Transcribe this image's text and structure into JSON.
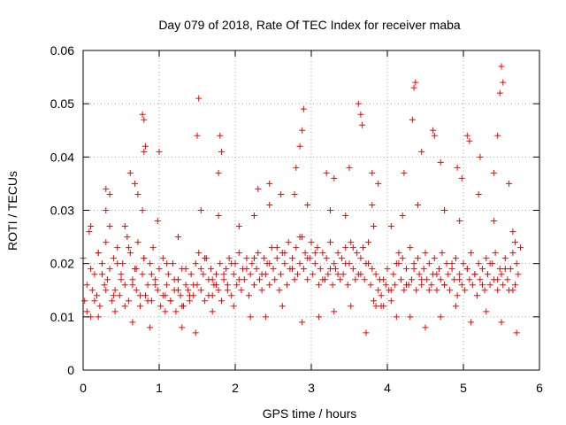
{
  "chart_data": {
    "type": "scatter",
    "title": "Day 079 of 2018, Rate Of TEC Index for receiver maba",
    "xlabel": "GPS time / hours",
    "ylabel": "ROTI / TECUs",
    "xlim": [
      0,
      6
    ],
    "ylim": [
      0,
      0.06
    ],
    "xticks": [
      0,
      1,
      2,
      3,
      4,
      5,
      6
    ],
    "xtick_labels": [
      "0",
      "1",
      "2",
      "3",
      "4",
      "5",
      "6"
    ],
    "yticks": [
      0,
      0.01,
      0.02,
      0.03,
      0.04,
      0.05,
      0.06
    ],
    "ytick_labels": [
      "0",
      "0.01",
      "0.02",
      "0.03",
      "0.04",
      "0.05",
      "0.06"
    ],
    "grid": true,
    "marker": "+",
    "marker_color": "#ff0000",
    "series": [
      {
        "name": "ROTI",
        "x": [
          0.0,
          0.02,
          0.05,
          0.08,
          0.1,
          0.12,
          0.15,
          0.18,
          0.2,
          0.22,
          0.25,
          0.28,
          0.3,
          0.32,
          0.35,
          0.38,
          0.4,
          0.42,
          0.45,
          0.48,
          0.5,
          0.52,
          0.55,
          0.58,
          0.6,
          0.62,
          0.65,
          0.68,
          0.7,
          0.72,
          0.75,
          0.78,
          0.8,
          0.82,
          0.85,
          0.88,
          0.9,
          0.92,
          0.95,
          0.98,
          1.0,
          1.02,
          1.05,
          1.08,
          1.1,
          1.12,
          1.15,
          1.18,
          1.2,
          1.22,
          1.25,
          1.28,
          1.3,
          1.32,
          1.35,
          1.38,
          1.4,
          1.42,
          1.45,
          1.48,
          1.5,
          1.52,
          1.55,
          1.58,
          1.6,
          1.62,
          1.65,
          1.68,
          1.7,
          1.72,
          1.75,
          1.78,
          1.8,
          1.82,
          1.85,
          1.88,
          1.9,
          1.92,
          1.95,
          1.98,
          2.0,
          2.02,
          2.05,
          2.08,
          2.1,
          2.12,
          2.15,
          2.18,
          2.2,
          2.22,
          2.25,
          2.28,
          2.3,
          2.32,
          2.35,
          2.38,
          2.4,
          2.42,
          2.45,
          2.48,
          2.5,
          2.52,
          2.55,
          2.58,
          2.6,
          2.62,
          2.65,
          2.68,
          2.7,
          2.72,
          2.75,
          2.78,
          2.8,
          2.82,
          2.85,
          2.88,
          2.9,
          2.92,
          2.95,
          2.98,
          3.0,
          3.02,
          3.05,
          3.08,
          3.1,
          3.12,
          3.15,
          3.18,
          3.2,
          3.22,
          3.25,
          3.28,
          3.3,
          3.32,
          3.35,
          3.38,
          3.4,
          3.42,
          3.45,
          3.48,
          3.5,
          3.52,
          3.55,
          3.58,
          3.6,
          3.62,
          3.65,
          3.68,
          3.7,
          3.72,
          3.75,
          3.78,
          3.8,
          3.82,
          3.85,
          3.88,
          3.9,
          3.92,
          3.95,
          3.98,
          4.0,
          4.02,
          4.05,
          4.08,
          4.1,
          4.12,
          4.15,
          4.18,
          4.2,
          4.22,
          4.25,
          4.28,
          4.3,
          4.32,
          4.35,
          4.38,
          4.4,
          4.42,
          4.45,
          4.48,
          4.5,
          4.52,
          4.55,
          4.58,
          4.6,
          4.62,
          4.65,
          4.68,
          4.7,
          4.72,
          4.75,
          4.78,
          4.8,
          4.82,
          4.85,
          4.88,
          4.9,
          4.92,
          4.95,
          4.98,
          5.0,
          5.02,
          5.05,
          5.08,
          5.1,
          5.12,
          5.15,
          5.18,
          5.2,
          5.22,
          5.25,
          5.28,
          5.3,
          5.32,
          5.35,
          5.38,
          5.4,
          5.42,
          5.45,
          5.48,
          5.5,
          5.52,
          5.55,
          5.58,
          5.6,
          5.62,
          5.65,
          5.68,
          5.7,
          5.72,
          5.75,
          0.05,
          0.1,
          0.15,
          0.2,
          0.25,
          0.3,
          0.35,
          0.4,
          0.45,
          0.5,
          0.55,
          0.6,
          0.65,
          0.7,
          0.75,
          0.8,
          0.85,
          0.9,
          0.95,
          1.05,
          1.1,
          1.15,
          1.2,
          1.25,
          1.3,
          1.35,
          1.4,
          1.45,
          1.55,
          1.6,
          1.65,
          1.7,
          1.75,
          1.85,
          1.9,
          1.95,
          2.05,
          2.15,
          2.25,
          2.35,
          2.45,
          2.55,
          2.65,
          2.75,
          2.85,
          2.95,
          3.05,
          3.15,
          3.25,
          3.35,
          3.45,
          3.55,
          3.65,
          3.75,
          3.85,
          3.95,
          4.05,
          4.15,
          4.25,
          4.35,
          4.45,
          4.55,
          4.65,
          4.75,
          4.85,
          4.95,
          5.05,
          5.15,
          5.25,
          5.35,
          5.45,
          5.55,
          5.65,
          0.78,
          0.8,
          0.82,
          0.8,
          1.52,
          1.5,
          1.8,
          1.82,
          2.85,
          2.9,
          2.88,
          3.62,
          3.65,
          3.67,
          4.35,
          4.37,
          4.33,
          4.6,
          4.62,
          5.05,
          5.08,
          5.5,
          5.52,
          5.48,
          5.45,
          0.3,
          0.35,
          0.62,
          0.68,
          0.72,
          1.0,
          1.78,
          2.3,
          2.45,
          2.6,
          2.8,
          3.2,
          3.3,
          3.5,
          3.8,
          3.88,
          4.22,
          4.45,
          4.7,
          4.92,
          4.98,
          5.22,
          5.4,
          5.6,
          0.1,
          0.3,
          0.55,
          0.78,
          0.98,
          1.25,
          1.55,
          1.78,
          2.05,
          2.25,
          2.45,
          2.78,
          2.95,
          3.25,
          3.45,
          3.8,
          3.82,
          4.05,
          4.2,
          4.4,
          4.75,
          4.95,
          5.2,
          5.4,
          5.65,
          5.68,
          0.2,
          0.42,
          0.65,
          0.88,
          1.08,
          1.3,
          1.48,
          1.7,
          1.98,
          2.2,
          2.4,
          2.62,
          2.88,
          3.1,
          3.3,
          3.52,
          3.72,
          3.92,
          4.12,
          4.3,
          4.5,
          4.7,
          4.9,
          5.1,
          5.3,
          5.5,
          5.7
        ],
        "y": [
          0.021,
          0.013,
          0.011,
          0.026,
          0.01,
          0.015,
          0.018,
          0.014,
          0.022,
          0.012,
          0.02,
          0.016,
          0.024,
          0.017,
          0.019,
          0.013,
          0.021,
          0.015,
          0.023,
          0.014,
          0.018,
          0.02,
          0.016,
          0.025,
          0.013,
          0.022,
          0.017,
          0.019,
          0.015,
          0.024,
          0.012,
          0.018,
          0.021,
          0.014,
          0.016,
          0.02,
          0.013,
          0.023,
          0.017,
          0.015,
          0.019,
          0.012,
          0.021,
          0.014,
          0.016,
          0.018,
          0.013,
          0.02,
          0.015,
          0.011,
          0.017,
          0.014,
          0.019,
          0.012,
          0.016,
          0.015,
          0.013,
          0.018,
          0.014,
          0.02,
          0.016,
          0.022,
          0.015,
          0.018,
          0.013,
          0.021,
          0.017,
          0.019,
          0.014,
          0.016,
          0.018,
          0.015,
          0.02,
          0.013,
          0.017,
          0.019,
          0.016,
          0.021,
          0.014,
          0.018,
          0.02,
          0.016,
          0.022,
          0.015,
          0.019,
          0.017,
          0.021,
          0.014,
          0.018,
          0.02,
          0.016,
          0.019,
          0.022,
          0.017,
          0.015,
          0.021,
          0.018,
          0.02,
          0.016,
          0.023,
          0.019,
          0.017,
          0.021,
          0.015,
          0.018,
          0.022,
          0.02,
          0.016,
          0.024,
          0.019,
          0.021,
          0.017,
          0.023,
          0.018,
          0.02,
          0.025,
          0.019,
          0.022,
          0.017,
          0.021,
          0.024,
          0.018,
          0.02,
          0.023,
          0.016,
          0.019,
          0.022,
          0.017,
          0.021,
          0.018,
          0.024,
          0.016,
          0.02,
          0.019,
          0.022,
          0.017,
          0.021,
          0.018,
          0.023,
          0.016,
          0.02,
          0.024,
          0.019,
          0.017,
          0.022,
          0.018,
          0.021,
          0.023,
          0.017,
          0.02,
          0.024,
          0.016,
          0.019,
          0.013,
          0.018,
          0.015,
          0.017,
          0.014,
          0.012,
          0.016,
          0.019,
          0.015,
          0.013,
          0.018,
          0.016,
          0.02,
          0.022,
          0.017,
          0.021,
          0.015,
          0.019,
          0.016,
          0.023,
          0.017,
          0.02,
          0.015,
          0.021,
          0.018,
          0.016,
          0.019,
          0.022,
          0.017,
          0.02,
          0.016,
          0.018,
          0.021,
          0.015,
          0.019,
          0.017,
          0.022,
          0.016,
          0.02,
          0.018,
          0.015,
          0.019,
          0.017,
          0.021,
          0.014,
          0.018,
          0.016,
          0.02,
          0.015,
          0.019,
          0.017,
          0.022,
          0.016,
          0.018,
          0.014,
          0.02,
          0.017,
          0.019,
          0.015,
          0.021,
          0.018,
          0.016,
          0.02,
          0.017,
          0.022,
          0.015,
          0.019,
          0.018,
          0.016,
          0.021,
          0.017,
          0.015,
          0.019,
          0.022,
          0.016,
          0.02,
          0.018,
          0.023,
          0.016,
          0.019,
          0.013,
          0.022,
          0.018,
          0.015,
          0.027,
          0.014,
          0.02,
          0.017,
          0.012,
          0.023,
          0.016,
          0.019,
          0.014,
          0.021,
          0.013,
          0.018,
          0.016,
          0.014,
          0.02,
          0.013,
          0.017,
          0.015,
          0.012,
          0.019,
          0.014,
          0.016,
          0.019,
          0.021,
          0.014,
          0.017,
          0.016,
          0.018,
          0.015,
          0.02,
          0.017,
          0.019,
          0.021,
          0.018,
          0.02,
          0.023,
          0.022,
          0.019,
          0.025,
          0.021,
          0.022,
          0.017,
          0.019,
          0.018,
          0.02,
          0.023,
          0.018,
          0.02,
          0.012,
          0.017,
          0.015,
          0.02,
          0.016,
          0.019,
          0.017,
          0.015,
          0.018,
          0.016,
          0.02,
          0.017,
          0.019,
          0.018,
          0.016,
          0.02,
          0.017,
          0.019,
          0.015,
          0.048,
          0.047,
          0.042,
          0.041,
          0.051,
          0.044,
          0.044,
          0.041,
          0.042,
          0.049,
          0.045,
          0.05,
          0.048,
          0.046,
          0.053,
          0.054,
          0.047,
          0.045,
          0.044,
          0.044,
          0.043,
          0.057,
          0.054,
          0.052,
          0.044,
          0.034,
          0.033,
          0.037,
          0.035,
          0.033,
          0.041,
          0.037,
          0.034,
          0.035,
          0.033,
          0.038,
          0.037,
          0.036,
          0.038,
          0.037,
          0.035,
          0.037,
          0.041,
          0.039,
          0.038,
          0.036,
          0.04,
          0.037,
          0.035,
          0.027,
          0.03,
          0.027,
          0.03,
          0.028,
          0.025,
          0.03,
          0.029,
          0.027,
          0.029,
          0.031,
          0.033,
          0.031,
          0.03,
          0.029,
          0.031,
          0.027,
          0.027,
          0.029,
          0.031,
          0.03,
          0.028,
          0.033,
          0.028,
          0.026,
          0.024,
          0.01,
          0.011,
          0.009,
          0.008,
          0.011,
          0.008,
          0.007,
          0.011,
          0.012,
          0.01,
          0.01,
          0.012,
          0.009,
          0.01,
          0.011,
          0.012,
          0.007,
          0.012,
          0.01,
          0.01,
          0.008,
          0.01,
          0.012,
          0.009,
          0.011,
          0.009,
          0.007
        ]
      }
    ]
  }
}
